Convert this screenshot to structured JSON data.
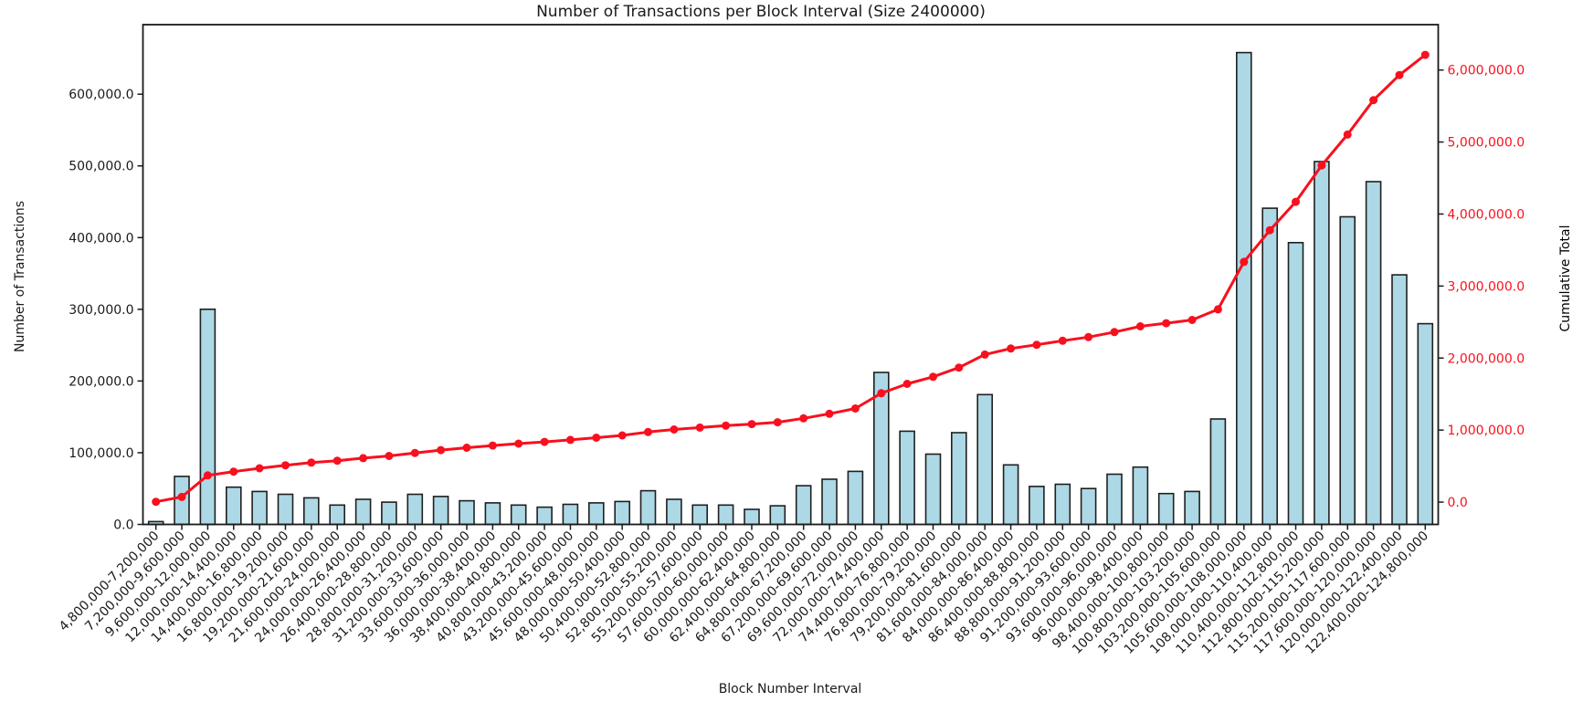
{
  "chart_data": {
    "type": "bar",
    "combo": "bar+line",
    "title": "Number of Transactions per Block Interval (Size 2400000)",
    "xlabel": "Block Number Interval",
    "ylabel_left": "Number of Transactions",
    "ylabel_right": "Cumulative Total",
    "grid": false,
    "legend": "none",
    "categories": [
      "4,800,000-7,200,000",
      "7,200,000-9,600,000",
      "9,600,000-12,000,000",
      "12,000,000-14,400,000",
      "14,400,000-16,800,000",
      "16,800,000-19,200,000",
      "19,200,000-21,600,000",
      "21,600,000-24,000,000",
      "24,000,000-26,400,000",
      "26,400,000-28,800,000",
      "28,800,000-31,200,000",
      "31,200,000-33,600,000",
      "33,600,000-36,000,000",
      "36,000,000-38,400,000",
      "38,400,000-40,800,000",
      "40,800,000-43,200,000",
      "43,200,000-45,600,000",
      "45,600,000-48,000,000",
      "48,000,000-50,400,000",
      "50,400,000-52,800,000",
      "52,800,000-55,200,000",
      "55,200,000-57,600,000",
      "57,600,000-60,000,000",
      "60,000,000-62,400,000",
      "62,400,000-64,800,000",
      "64,800,000-67,200,000",
      "67,200,000-69,600,000",
      "69,600,000-72,000,000",
      "72,000,000-74,400,000",
      "74,400,000-76,800,000",
      "76,800,000-79,200,000",
      "79,200,000-81,600,000",
      "81,600,000-84,000,000",
      "84,000,000-86,400,000",
      "86,400,000-88,800,000",
      "88,800,000-91,200,000",
      "91,200,000-93,600,000",
      "93,600,000-96,000,000",
      "96,000,000-98,400,000",
      "98,400,000-100,800,000",
      "100,800,000-103,200,000",
      "103,200,000-105,600,000",
      "105,600,000-108,000,000",
      "108,000,000-110,400,000",
      "110,400,000-112,800,000",
      "112,800,000-115,200,000",
      "115,200,000-117,600,000",
      "117,600,000-120,000,000",
      "120,000,000-122,400,000",
      "122,400,000-124,800,000"
    ],
    "series": [
      {
        "name": "Number of Transactions",
        "type": "bar",
        "axis": "left",
        "values": [
          4000,
          67000,
          300000,
          52000,
          46000,
          42000,
          37000,
          27000,
          35000,
          31000,
          42000,
          39000,
          33000,
          30000,
          27000,
          24000,
          28000,
          30000,
          32000,
          47000,
          35000,
          27000,
          27000,
          21000,
          26000,
          54000,
          63000,
          74000,
          212000,
          130000,
          98000,
          128000,
          181000,
          83000,
          53000,
          56000,
          50000,
          70000,
          80000,
          43000,
          46000,
          147000,
          658000,
          441000,
          393000,
          506000,
          429000,
          478000,
          348000,
          280000
        ]
      },
      {
        "name": "Cumulative Total",
        "type": "line",
        "axis": "right",
        "values": [
          4000,
          71000,
          371000,
          423000,
          469000,
          511000,
          548000,
          575000,
          610000,
          641000,
          683000,
          722000,
          755000,
          785000,
          812000,
          836000,
          864000,
          894000,
          926000,
          973000,
          1008000,
          1035000,
          1062000,
          1083000,
          1109000,
          1163000,
          1226000,
          1300000,
          1512000,
          1642000,
          1740000,
          1868000,
          2049000,
          2132000,
          2185000,
          2241000,
          2291000,
          2361000,
          2441000,
          2484000,
          2530000,
          2677000,
          3335000,
          3776000,
          4169000,
          4675000,
          5104000,
          5582000,
          5930000,
          6210000
        ]
      }
    ],
    "left_axis": {
      "tick_labels": [
        "0.0",
        "100,000.0",
        "200,000.0",
        "300,000.0",
        "400,000.0",
        "500,000.0",
        "600,000.0"
      ],
      "tick_values": [
        0,
        100000,
        200000,
        300000,
        400000,
        500000,
        600000
      ],
      "lim": [
        0,
        697000
      ]
    },
    "right_axis": {
      "tick_labels": [
        "0.0",
        "1,000,000.0",
        "2,000,000.0",
        "3,000,000.0",
        "4,000,000.0",
        "5,000,000.0",
        "6,000,000.0"
      ],
      "tick_values": [
        0,
        1000000,
        2000000,
        3000000,
        4000000,
        5000000,
        6000000
      ],
      "lim": [
        -310000,
        6630000
      ]
    },
    "colors": {
      "bar_fill": "#add8e6",
      "bar_edge": "#1f1f1f",
      "line": "#f8101e",
      "spine": "#1a1a1a",
      "tick_text": "#1a1a1a"
    }
  }
}
